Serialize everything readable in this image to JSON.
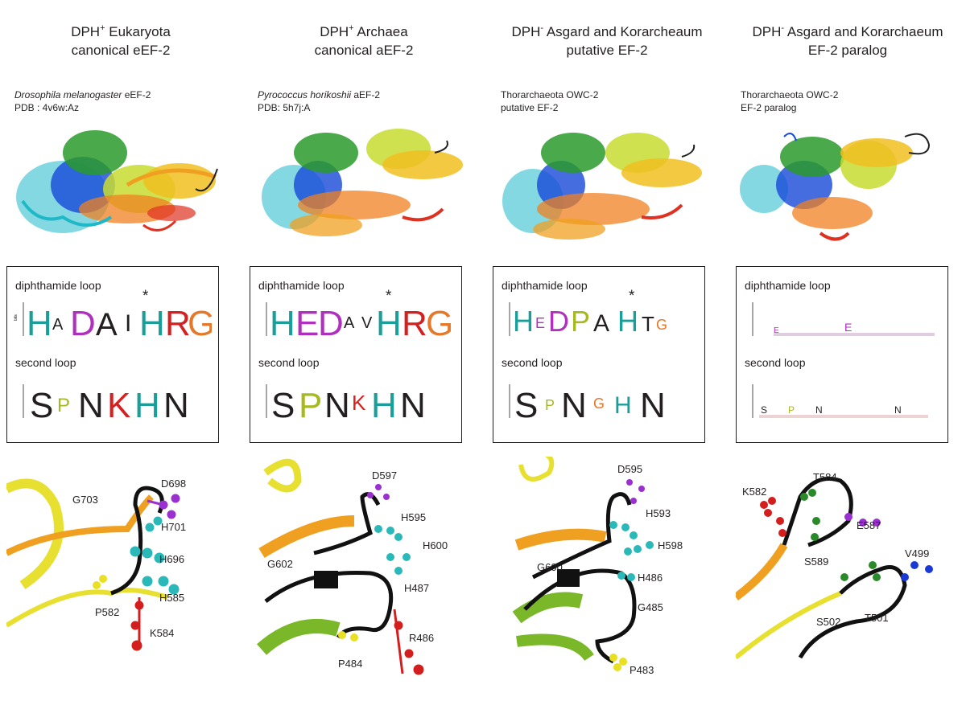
{
  "panels": [
    {
      "title_line1": "DPH",
      "title_sup": "+",
      "title_rest": " Eukaryota",
      "title_line2": "canonical eEF-2",
      "species_italic": "Drosophila melanogaster",
      "species_rest": " eEF-2",
      "species_line2": "PDB : 4v6w:Az",
      "loop1_label": "diphthamide loop",
      "loop2_label": "second loop",
      "asterisk": "*",
      "logo1_letters": [
        "H",
        "A",
        "D",
        "A",
        "I",
        "H",
        "R",
        "G"
      ],
      "logo2_letters": [
        "S",
        "P",
        "N",
        "K",
        "H",
        "N"
      ],
      "residues": [
        "G703",
        "D698",
        "H701",
        "H696",
        "H585",
        "P582",
        "K584"
      ]
    },
    {
      "title_line1": "DPH",
      "title_sup": "+",
      "title_rest": " Archaea",
      "title_line2": "canonical aEF-2",
      "species_italic": "Pyrococcus horikoshii",
      "species_rest": "  aEF-2",
      "species_line2": "PDB: 5h7j:A",
      "loop1_label": "diphthamide loop",
      "loop2_label": "second loop",
      "asterisk": "*",
      "logo1_letters": [
        "H",
        "E",
        "D",
        "A",
        "V",
        "H",
        "R",
        "G"
      ],
      "logo2_letters": [
        "S",
        "P",
        "N",
        "K",
        "H",
        "N"
      ],
      "residues": [
        "D597",
        "H595",
        "H600",
        "G602",
        "H487",
        "R486",
        "P484"
      ]
    },
    {
      "title_line1": "DPH",
      "title_sup": "-",
      "title_rest": " Asgard and Korarcheaum",
      "title_line2": "putative EF-2",
      "species_italic": "",
      "species_rest": "Thorarchaeota OWC-2",
      "species_line2": "putative EF-2",
      "loop1_label": "diphthamide loop",
      "loop2_label": "second loop",
      "asterisk": "*",
      "logo1_letters": [
        "H",
        "E",
        "D",
        "P",
        "A",
        "H",
        "T",
        "G"
      ],
      "logo2_letters": [
        "S",
        "P",
        "N",
        "G",
        "H",
        "N"
      ],
      "residues": [
        "D595",
        "H593",
        "H598",
        "G600",
        "H486",
        "G485",
        "P483"
      ]
    },
    {
      "title_line1": "DPH",
      "title_sup": "-",
      "title_rest": " Asgard and Korarchaeum",
      "title_line2": "EF-2 paralog",
      "species_italic": "",
      "species_rest": "Thorarchaeota OWC-2",
      "species_line2": "EF-2 paralog",
      "loop1_label": "diphthamide loop",
      "loop2_label": "second loop",
      "asterisk": "",
      "logo1_letters": [
        "E",
        "E"
      ],
      "logo2_letters": [
        "S",
        "P",
        "N",
        "N"
      ],
      "residues": [
        "K582",
        "T584",
        "E587",
        "S589",
        "V499",
        "T501",
        "S502"
      ]
    }
  ],
  "axis_label": "bits",
  "axis_ticks": [
    "4",
    "3",
    "2",
    "1",
    "0"
  ],
  "colors": {
    "H": "#1a9e9a",
    "D": "#b02fbf",
    "E": "#b02fbf",
    "A": "#231f20",
    "I": "#231f20",
    "R": "#d42020",
    "K": "#d42020",
    "G": "#e6782a",
    "S": "#231f20",
    "P": "#a8b820",
    "N": "#231f20",
    "T": "#231f20",
    "V": "#231f20",
    "loop": "#111111",
    "his": "#2ab8b8",
    "asp": "#9b30d0",
    "lys": "#d41e1e",
    "pro": "#e8e020",
    "thr": "#2a8a2a",
    "val": "#1a3ad8",
    "helix_orange": "#f0a020",
    "helix_yellow": "#e8e030",
    "helix_green": "#7ab82a"
  }
}
